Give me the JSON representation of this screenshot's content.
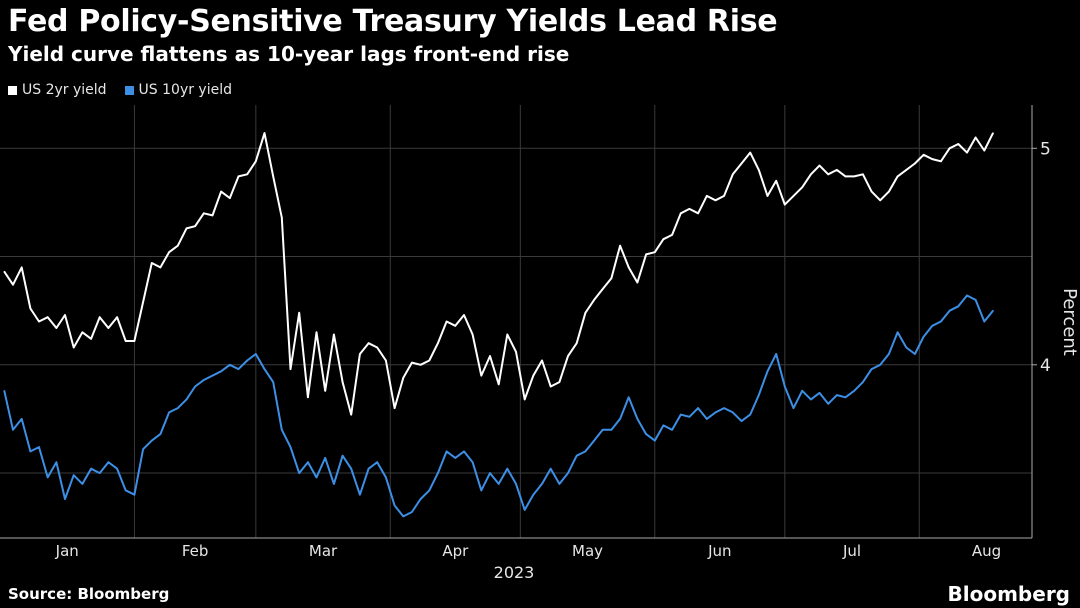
{
  "title": "Fed Policy-Sensitive Treasury Yields Lead Rise",
  "subtitle": "Yield curve flattens as 10-year lags front-end rise",
  "source": "Source: Bloomberg",
  "brand": "Bloomberg",
  "colors": {
    "background": "#000000",
    "grid": "#3a3a3a",
    "us2y": "#ffffff",
    "us10y": "#3d8fe6"
  },
  "chart_data": {
    "type": "line",
    "title": "Fed Policy-Sensitive Treasury Yields Lead Rise",
    "subtitle": "Yield curve flattens as 10-year lags front-end rise",
    "xlabel": "2023",
    "ylabel": "Percent",
    "ylim": [
      3.2,
      5.2
    ],
    "y_ticks": [
      4,
      5
    ],
    "grid": true,
    "legend_position": "top-left",
    "axis_side": "right",
    "months": [
      "Jan",
      "Feb",
      "Mar",
      "Apr",
      "May",
      "Jun",
      "Jul",
      "Aug"
    ],
    "series": [
      {
        "name": "US 2yr yield",
        "color": "#ffffff",
        "points": [
          [
            "2023-01-02",
            4.43
          ],
          [
            "2023-01-04",
            4.37
          ],
          [
            "2023-01-06",
            4.45
          ],
          [
            "2023-01-08",
            4.26
          ],
          [
            "2023-01-10",
            4.2
          ],
          [
            "2023-01-12",
            4.22
          ],
          [
            "2023-01-14",
            4.17
          ],
          [
            "2023-01-16",
            4.23
          ],
          [
            "2023-01-18",
            4.08
          ],
          [
            "2023-01-20",
            4.15
          ],
          [
            "2023-01-22",
            4.12
          ],
          [
            "2023-01-24",
            4.22
          ],
          [
            "2023-01-26",
            4.17
          ],
          [
            "2023-01-28",
            4.22
          ],
          [
            "2023-01-30",
            4.11
          ],
          [
            "2023-02-01",
            4.11
          ],
          [
            "2023-02-03",
            4.29
          ],
          [
            "2023-02-05",
            4.47
          ],
          [
            "2023-02-07",
            4.45
          ],
          [
            "2023-02-09",
            4.52
          ],
          [
            "2023-02-11",
            4.55
          ],
          [
            "2023-02-13",
            4.63
          ],
          [
            "2023-02-15",
            4.64
          ],
          [
            "2023-02-17",
            4.7
          ],
          [
            "2023-02-19",
            4.69
          ],
          [
            "2023-02-21",
            4.8
          ],
          [
            "2023-02-23",
            4.77
          ],
          [
            "2023-02-25",
            4.87
          ],
          [
            "2023-02-27",
            4.88
          ],
          [
            "2023-03-01",
            4.94
          ],
          [
            "2023-03-03",
            5.07
          ],
          [
            "2023-03-05",
            4.87
          ],
          [
            "2023-03-07",
            4.68
          ],
          [
            "2023-03-09",
            3.98
          ],
          [
            "2023-03-11",
            4.24
          ],
          [
            "2023-03-13",
            3.85
          ],
          [
            "2023-03-15",
            4.15
          ],
          [
            "2023-03-17",
            3.88
          ],
          [
            "2023-03-19",
            4.14
          ],
          [
            "2023-03-21",
            3.92
          ],
          [
            "2023-03-23",
            3.77
          ],
          [
            "2023-03-25",
            4.05
          ],
          [
            "2023-03-27",
            4.1
          ],
          [
            "2023-03-29",
            4.08
          ],
          [
            "2023-03-31",
            4.02
          ],
          [
            "2023-04-02",
            3.8
          ],
          [
            "2023-04-04",
            3.94
          ],
          [
            "2023-04-06",
            4.01
          ],
          [
            "2023-04-08",
            4.0
          ],
          [
            "2023-04-10",
            4.02
          ],
          [
            "2023-04-12",
            4.1
          ],
          [
            "2023-04-14",
            4.2
          ],
          [
            "2023-04-16",
            4.18
          ],
          [
            "2023-04-18",
            4.23
          ],
          [
            "2023-04-20",
            4.14
          ],
          [
            "2023-04-22",
            3.95
          ],
          [
            "2023-04-24",
            4.04
          ],
          [
            "2023-04-26",
            3.91
          ],
          [
            "2023-04-28",
            4.14
          ],
          [
            "2023-04-30",
            4.06
          ],
          [
            "2023-05-02",
            3.84
          ],
          [
            "2023-05-04",
            3.95
          ],
          [
            "2023-05-06",
            4.02
          ],
          [
            "2023-05-08",
            3.9
          ],
          [
            "2023-05-10",
            3.92
          ],
          [
            "2023-05-12",
            4.04
          ],
          [
            "2023-05-14",
            4.1
          ],
          [
            "2023-05-16",
            4.24
          ],
          [
            "2023-05-18",
            4.3
          ],
          [
            "2023-05-20",
            4.35
          ],
          [
            "2023-05-22",
            4.4
          ],
          [
            "2023-05-24",
            4.55
          ],
          [
            "2023-05-26",
            4.45
          ],
          [
            "2023-05-28",
            4.38
          ],
          [
            "2023-05-30",
            4.51
          ],
          [
            "2023-06-01",
            4.52
          ],
          [
            "2023-06-03",
            4.58
          ],
          [
            "2023-06-05",
            4.6
          ],
          [
            "2023-06-07",
            4.7
          ],
          [
            "2023-06-09",
            4.72
          ],
          [
            "2023-06-11",
            4.7
          ],
          [
            "2023-06-13",
            4.78
          ],
          [
            "2023-06-15",
            4.76
          ],
          [
            "2023-06-17",
            4.78
          ],
          [
            "2023-06-19",
            4.88
          ],
          [
            "2023-06-21",
            4.93
          ],
          [
            "2023-06-23",
            4.98
          ],
          [
            "2023-06-25",
            4.9
          ],
          [
            "2023-06-27",
            4.78
          ],
          [
            "2023-06-29",
            4.85
          ],
          [
            "2023-07-01",
            4.74
          ],
          [
            "2023-07-03",
            4.78
          ],
          [
            "2023-07-05",
            4.82
          ],
          [
            "2023-07-07",
            4.88
          ],
          [
            "2023-07-09",
            4.92
          ],
          [
            "2023-07-11",
            4.88
          ],
          [
            "2023-07-13",
            4.9
          ],
          [
            "2023-07-15",
            4.87
          ],
          [
            "2023-07-17",
            4.87
          ],
          [
            "2023-07-19",
            4.88
          ],
          [
            "2023-07-21",
            4.8
          ],
          [
            "2023-07-23",
            4.76
          ],
          [
            "2023-07-25",
            4.8
          ],
          [
            "2023-07-27",
            4.87
          ],
          [
            "2023-07-29",
            4.9
          ],
          [
            "2023-07-31",
            4.93
          ],
          [
            "2023-08-02",
            4.97
          ],
          [
            "2023-08-04",
            4.95
          ],
          [
            "2023-08-06",
            4.94
          ],
          [
            "2023-08-08",
            5.0
          ],
          [
            "2023-08-10",
            5.02
          ],
          [
            "2023-08-12",
            4.98
          ],
          [
            "2023-08-14",
            5.05
          ],
          [
            "2023-08-16",
            4.99
          ],
          [
            "2023-08-18",
            5.07
          ]
        ]
      },
      {
        "name": "US 10yr yield",
        "color": "#3d8fe6",
        "points": [
          [
            "2023-01-02",
            3.88
          ],
          [
            "2023-01-04",
            3.7
          ],
          [
            "2023-01-06",
            3.75
          ],
          [
            "2023-01-08",
            3.6
          ],
          [
            "2023-01-10",
            3.62
          ],
          [
            "2023-01-12",
            3.48
          ],
          [
            "2023-01-14",
            3.55
          ],
          [
            "2023-01-16",
            3.38
          ],
          [
            "2023-01-18",
            3.49
          ],
          [
            "2023-01-20",
            3.45
          ],
          [
            "2023-01-22",
            3.52
          ],
          [
            "2023-01-24",
            3.5
          ],
          [
            "2023-01-26",
            3.55
          ],
          [
            "2023-01-28",
            3.52
          ],
          [
            "2023-01-30",
            3.42
          ],
          [
            "2023-02-01",
            3.4
          ],
          [
            "2023-02-03",
            3.61
          ],
          [
            "2023-02-05",
            3.65
          ],
          [
            "2023-02-07",
            3.68
          ],
          [
            "2023-02-09",
            3.78
          ],
          [
            "2023-02-11",
            3.8
          ],
          [
            "2023-02-13",
            3.84
          ],
          [
            "2023-02-15",
            3.9
          ],
          [
            "2023-02-17",
            3.93
          ],
          [
            "2023-02-19",
            3.95
          ],
          [
            "2023-02-21",
            3.97
          ],
          [
            "2023-02-23",
            4.0
          ],
          [
            "2023-02-25",
            3.98
          ],
          [
            "2023-02-27",
            4.02
          ],
          [
            "2023-03-01",
            4.05
          ],
          [
            "2023-03-03",
            3.98
          ],
          [
            "2023-03-05",
            3.92
          ],
          [
            "2023-03-07",
            3.7
          ],
          [
            "2023-03-09",
            3.62
          ],
          [
            "2023-03-11",
            3.5
          ],
          [
            "2023-03-13",
            3.55
          ],
          [
            "2023-03-15",
            3.48
          ],
          [
            "2023-03-17",
            3.57
          ],
          [
            "2023-03-19",
            3.45
          ],
          [
            "2023-03-21",
            3.58
          ],
          [
            "2023-03-23",
            3.52
          ],
          [
            "2023-03-25",
            3.4
          ],
          [
            "2023-03-27",
            3.52
          ],
          [
            "2023-03-29",
            3.55
          ],
          [
            "2023-03-31",
            3.48
          ],
          [
            "2023-04-02",
            3.35
          ],
          [
            "2023-04-04",
            3.3
          ],
          [
            "2023-04-06",
            3.32
          ],
          [
            "2023-04-08",
            3.38
          ],
          [
            "2023-04-10",
            3.42
          ],
          [
            "2023-04-12",
            3.5
          ],
          [
            "2023-04-14",
            3.6
          ],
          [
            "2023-04-16",
            3.57
          ],
          [
            "2023-04-18",
            3.6
          ],
          [
            "2023-04-20",
            3.55
          ],
          [
            "2023-04-22",
            3.42
          ],
          [
            "2023-04-24",
            3.5
          ],
          [
            "2023-04-26",
            3.45
          ],
          [
            "2023-04-28",
            3.52
          ],
          [
            "2023-04-30",
            3.45
          ],
          [
            "2023-05-02",
            3.33
          ],
          [
            "2023-05-04",
            3.4
          ],
          [
            "2023-05-06",
            3.45
          ],
          [
            "2023-05-08",
            3.52
          ],
          [
            "2023-05-10",
            3.45
          ],
          [
            "2023-05-12",
            3.5
          ],
          [
            "2023-05-14",
            3.58
          ],
          [
            "2023-05-16",
            3.6
          ],
          [
            "2023-05-18",
            3.65
          ],
          [
            "2023-05-20",
            3.7
          ],
          [
            "2023-05-22",
            3.7
          ],
          [
            "2023-05-24",
            3.75
          ],
          [
            "2023-05-26",
            3.85
          ],
          [
            "2023-05-28",
            3.75
          ],
          [
            "2023-05-30",
            3.68
          ],
          [
            "2023-06-01",
            3.65
          ],
          [
            "2023-06-03",
            3.72
          ],
          [
            "2023-06-05",
            3.7
          ],
          [
            "2023-06-07",
            3.77
          ],
          [
            "2023-06-09",
            3.76
          ],
          [
            "2023-06-11",
            3.8
          ],
          [
            "2023-06-13",
            3.75
          ],
          [
            "2023-06-15",
            3.78
          ],
          [
            "2023-06-17",
            3.8
          ],
          [
            "2023-06-19",
            3.78
          ],
          [
            "2023-06-21",
            3.74
          ],
          [
            "2023-06-23",
            3.77
          ],
          [
            "2023-06-25",
            3.86
          ],
          [
            "2023-06-27",
            3.97
          ],
          [
            "2023-06-29",
            4.05
          ],
          [
            "2023-07-01",
            3.9
          ],
          [
            "2023-07-03",
            3.8
          ],
          [
            "2023-07-05",
            3.88
          ],
          [
            "2023-07-07",
            3.84
          ],
          [
            "2023-07-09",
            3.87
          ],
          [
            "2023-07-11",
            3.82
          ],
          [
            "2023-07-13",
            3.86
          ],
          [
            "2023-07-15",
            3.85
          ],
          [
            "2023-07-17",
            3.88
          ],
          [
            "2023-07-19",
            3.92
          ],
          [
            "2023-07-21",
            3.98
          ],
          [
            "2023-07-23",
            4.0
          ],
          [
            "2023-07-25",
            4.05
          ],
          [
            "2023-07-27",
            4.15
          ],
          [
            "2023-07-29",
            4.08
          ],
          [
            "2023-07-31",
            4.05
          ],
          [
            "2023-08-02",
            4.13
          ],
          [
            "2023-08-04",
            4.18
          ],
          [
            "2023-08-06",
            4.2
          ],
          [
            "2023-08-08",
            4.25
          ],
          [
            "2023-08-10",
            4.27
          ],
          [
            "2023-08-12",
            4.32
          ],
          [
            "2023-08-14",
            4.3
          ],
          [
            "2023-08-16",
            4.2
          ],
          [
            "2023-08-18",
            4.25
          ]
        ]
      }
    ]
  }
}
